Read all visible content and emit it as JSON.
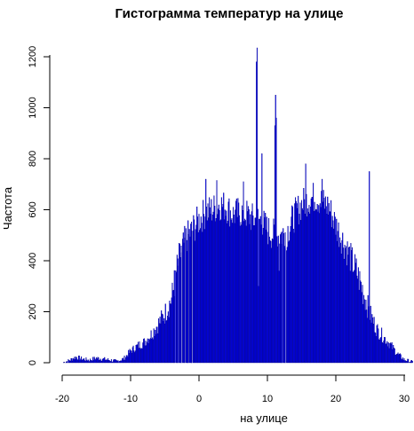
{
  "chart_data": {
    "type": "bar",
    "title": "Гистограмма температур на улице",
    "xlabel": "на улице",
    "ylabel": "Частота",
    "xlim": [
      -20,
      31.5
    ],
    "ylim": [
      0,
      1250
    ],
    "x_ticks": [
      -20,
      -10,
      0,
      10,
      20,
      30
    ],
    "x_tick_labels": [
      "-20",
      "-10",
      "0",
      "10",
      "20",
      "30"
    ],
    "y_ticks": [
      0,
      200,
      400,
      600,
      800,
      1000,
      1200
    ],
    "y_tick_labels": [
      "0",
      "200",
      "400",
      "600",
      "800",
      "1000",
      "1200"
    ],
    "bin_width": 0.1,
    "bar_color": "#0000ff",
    "bar_edge_color": "#000080",
    "grid": false,
    "legend": "none",
    "envelope_x": [
      -19.9,
      -19,
      -18,
      -17,
      -16,
      -15,
      -14,
      -13,
      -12,
      -11,
      -10,
      -9,
      -8,
      -7,
      -6,
      -5,
      -4,
      -3,
      -2,
      -1,
      0,
      1,
      2,
      3,
      4,
      5,
      6,
      7,
      8,
      9,
      10,
      11,
      12,
      13,
      14,
      15,
      16,
      17,
      18,
      19,
      20,
      21,
      22,
      23,
      24,
      25,
      26,
      27,
      28,
      29,
      30,
      31,
      31.5
    ],
    "envelope_y": [
      0,
      8,
      22,
      14,
      10,
      18,
      14,
      10,
      5,
      15,
      45,
      65,
      80,
      110,
      150,
      190,
      250,
      400,
      480,
      520,
      560,
      590,
      600,
      620,
      610,
      580,
      590,
      580,
      560,
      560,
      520,
      500,
      500,
      520,
      580,
      620,
      640,
      650,
      630,
      610,
      540,
      480,
      420,
      360,
      280,
      190,
      130,
      100,
      70,
      35,
      12,
      4,
      0
    ],
    "spikes": [
      {
        "x": 8.5,
        "y": 1235
      },
      {
        "x": 8.4,
        "y": 1180
      },
      {
        "x": 11.2,
        "y": 1050
      },
      {
        "x": 11.3,
        "y": 960
      },
      {
        "x": 11.1,
        "y": 930
      },
      {
        "x": 24.9,
        "y": 750
      },
      {
        "x": 9.2,
        "y": 820
      },
      {
        "x": 15.6,
        "y": 780
      },
      {
        "x": 18.0,
        "y": 720
      },
      {
        "x": 1.0,
        "y": 720
      },
      {
        "x": 2.6,
        "y": 715
      },
      {
        "x": 6.5,
        "y": 710
      }
    ],
    "dips": [
      {
        "x": 8.7,
        "y": 300
      },
      {
        "x": 11.7,
        "y": 360
      },
      {
        "x": 12.8,
        "y": 440
      }
    ]
  }
}
